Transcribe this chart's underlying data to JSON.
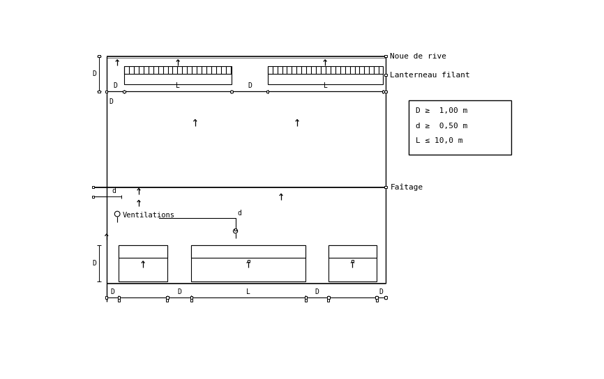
{
  "bg_color": "#ffffff",
  "line_color": "#000000",
  "legend_lines": [
    "D ≥  1,00 m",
    "d ≥  0,50 m",
    "L ≤ 10,0 m"
  ],
  "label_noue": "Noue de rive",
  "label_lanterneau": "Lanterneau filant",
  "label_faitage": "Faîtage",
  "label_ventilations": "Ventilations",
  "figsize": [
    8.66,
    5.44
  ],
  "dpi": 100,
  "xlim": [
    0,
    866
  ],
  "ylim": [
    0,
    544
  ]
}
